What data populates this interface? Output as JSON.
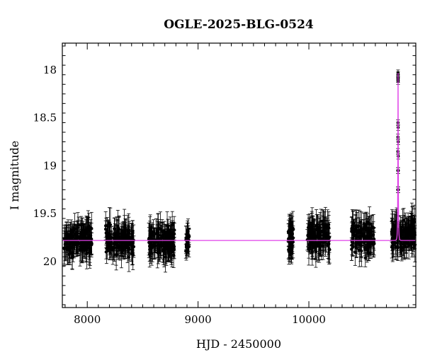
{
  "chart_data": {
    "type": "scatter",
    "title": "OGLE-2025-BLG-0524",
    "xlabel": "HJD - 2450000",
    "ylabel": "I magnitude",
    "xlim": [
      7775,
      10965
    ],
    "ylim": [
      20.48,
      17.72
    ],
    "y_inverted": true,
    "grid": false,
    "colors": {
      "points": "#000000",
      "model": "#e040e8",
      "frame": "#000000"
    },
    "x_ticks": [
      8000,
      9000,
      10000
    ],
    "x_tick_labels": [
      "8000",
      "9000",
      "10000"
    ],
    "y_ticks": [
      18,
      18.5,
      19,
      19.5,
      20
    ],
    "y_tick_labels": [
      "18",
      "18.5",
      "19",
      "19.5",
      "20"
    ],
    "baseline_mag": 19.78,
    "seasons": [
      {
        "start": 7790,
        "end": 8045,
        "mean": 19.78,
        "spread": 0.17,
        "err": 0.12,
        "n": 150
      },
      {
        "start": 8165,
        "end": 8420,
        "mean": 19.78,
        "spread": 0.17,
        "err": 0.12,
        "n": 150
      },
      {
        "start": 8555,
        "end": 8790,
        "mean": 19.78,
        "spread": 0.17,
        "err": 0.12,
        "n": 140
      },
      {
        "start": 8885,
        "end": 8920,
        "mean": 19.76,
        "spread": 0.14,
        "err": 0.1,
        "n": 25
      },
      {
        "start": 9815,
        "end": 9860,
        "mean": 19.76,
        "spread": 0.2,
        "err": 0.13,
        "n": 45
      },
      {
        "start": 9985,
        "end": 10190,
        "mean": 19.74,
        "spread": 0.17,
        "err": 0.12,
        "n": 120
      },
      {
        "start": 10385,
        "end": 10590,
        "mean": 19.75,
        "spread": 0.17,
        "err": 0.12,
        "n": 120
      },
      {
        "start": 10745,
        "end": 10960,
        "mean": 19.72,
        "spread": 0.17,
        "err": 0.12,
        "n": 130
      }
    ],
    "event": {
      "t0": 10805,
      "peak_mag": 18.03,
      "tE": 4.5,
      "points": [
        [
          10804.7,
          18.03
        ],
        [
          10805.0,
          18.05
        ],
        [
          10805.2,
          18.08
        ],
        [
          10804.9,
          18.1
        ],
        [
          10805.3,
          18.12
        ],
        [
          10804.4,
          18.55
        ],
        [
          10803.9,
          18.7
        ],
        [
          10803.6,
          18.85
        ],
        [
          10805.8,
          18.6
        ],
        [
          10806.2,
          18.75
        ],
        [
          10806.6,
          18.9
        ],
        [
          10803.2,
          19.05
        ],
        [
          10807.0,
          19.05
        ],
        [
          10802.6,
          19.25
        ],
        [
          10807.6,
          19.25
        ]
      ]
    }
  }
}
